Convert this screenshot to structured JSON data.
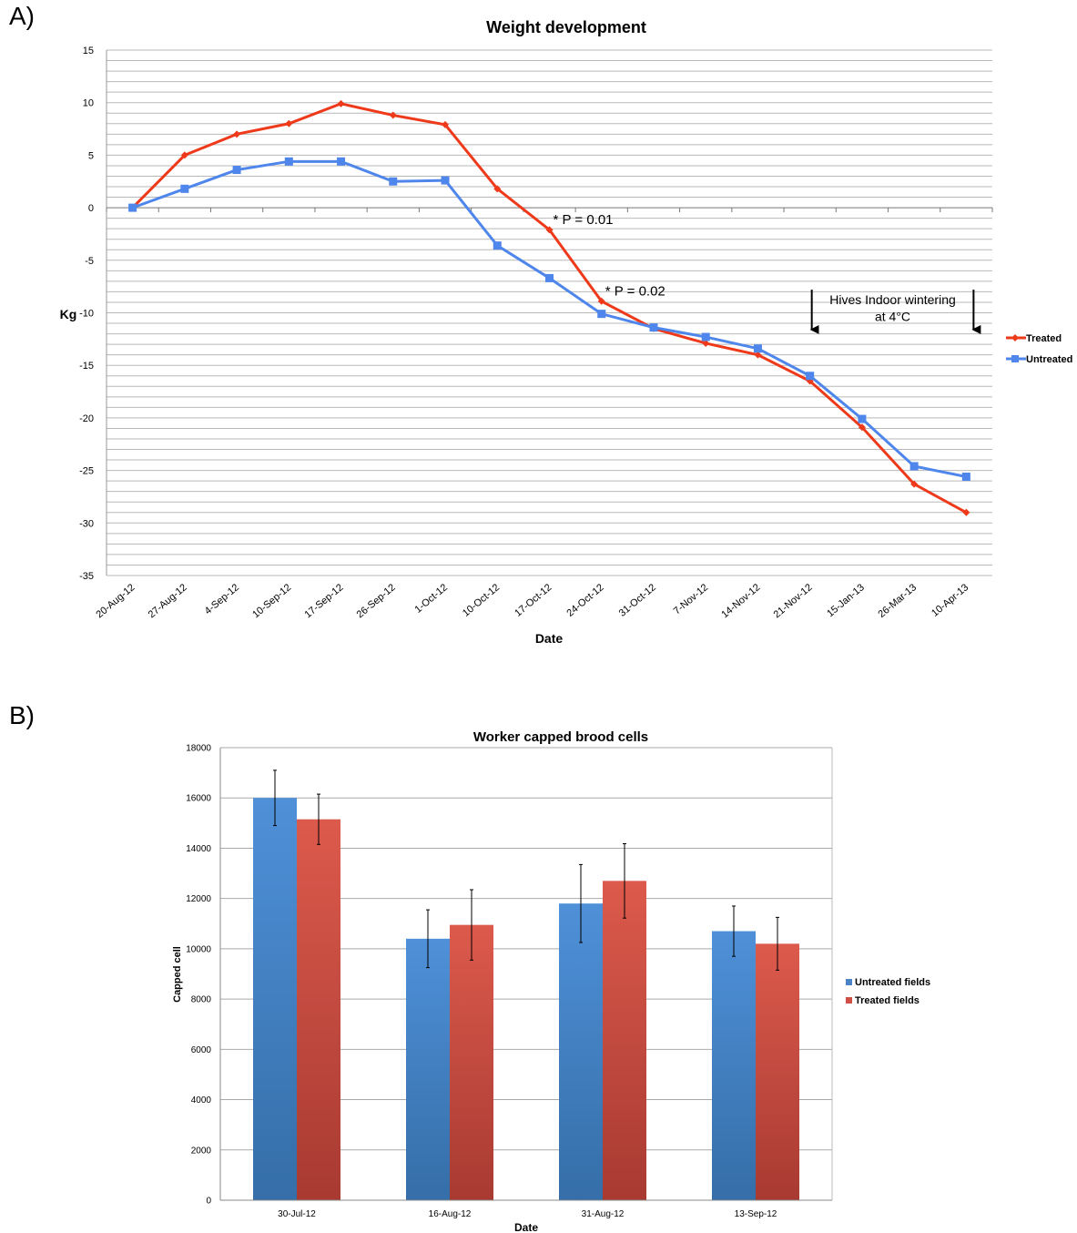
{
  "panels": {
    "a": "A)",
    "b": "B)"
  },
  "chart_data": [
    {
      "type": "line",
      "title": "Weight development",
      "xlabel": "Date",
      "ylabel": "Kg",
      "ylim": [
        -35,
        15
      ],
      "yticks": [
        15,
        10,
        5,
        0,
        -5,
        -10,
        -15,
        -20,
        -25,
        -30,
        -35
      ],
      "grid": true,
      "legend_position": "right",
      "categories": [
        "20-Aug-12",
        "27-Aug-12",
        "4-Sep-12",
        "10-Sep-12",
        "17-Sep-12",
        "26-Sep-12",
        "1-Oct-12",
        "10-Oct-12",
        "17-Oct-12",
        "24-Oct-12",
        "31-Oct-12",
        "7-Nov-12",
        "14-Nov-12",
        "21-Nov-12",
        "15-Jan-13",
        "26-Mar-13",
        "10-Apr-13"
      ],
      "series": [
        {
          "name": "Treated",
          "color": "#ee3a1a",
          "marker": "diamond",
          "values": [
            0,
            5,
            7,
            8,
            9.9,
            8.8,
            7.9,
            1.8,
            -2.1,
            -8.9,
            -11.5,
            -12.9,
            -14,
            -16.5,
            -20.9,
            -26.3,
            -29
          ]
        },
        {
          "name": "Untreated",
          "color": "#4f86ec",
          "marker": "square",
          "values": [
            0,
            1.8,
            3.6,
            4.4,
            4.4,
            2.5,
            2.6,
            -3.6,
            -6.7,
            -10.1,
            -11.4,
            -12.3,
            -13.4,
            -16,
            -20.1,
            -24.6,
            -25.6
          ]
        }
      ],
      "annotations": [
        {
          "text": "* P = 0.01",
          "x": "17-Oct-12",
          "y": -1.1
        },
        {
          "text": "* P = 0.02",
          "x": "24-Oct-12",
          "y": -7.9
        }
      ],
      "wintering": {
        "text_line1": "Hives Indoor wintering",
        "text_line2": "at 4°C",
        "start": "21-Nov-12",
        "end": "10-Apr-13"
      }
    },
    {
      "type": "bar",
      "title": "Worker capped brood cells",
      "xlabel": "Date",
      "ylabel": "Capped cell",
      "ylim": [
        0,
        18000
      ],
      "yticks": [
        0,
        2000,
        4000,
        6000,
        8000,
        10000,
        12000,
        14000,
        16000,
        18000
      ],
      "grid": true,
      "legend_position": "right",
      "categories": [
        "30-Jul-12",
        "16-Aug-12",
        "31-Aug-12",
        "13-Sep-12"
      ],
      "series": [
        {
          "name": "Untreated fields",
          "color": "#4a84c6",
          "values": [
            16000,
            10400,
            11800,
            10700
          ],
          "error": [
            1100,
            1150,
            1550,
            1000
          ]
        },
        {
          "name": "Treated fields",
          "color": "#d04f45",
          "values": [
            15150,
            10950,
            12700,
            10200
          ],
          "error": [
            1000,
            1400,
            1480,
            1050
          ]
        }
      ]
    }
  ]
}
